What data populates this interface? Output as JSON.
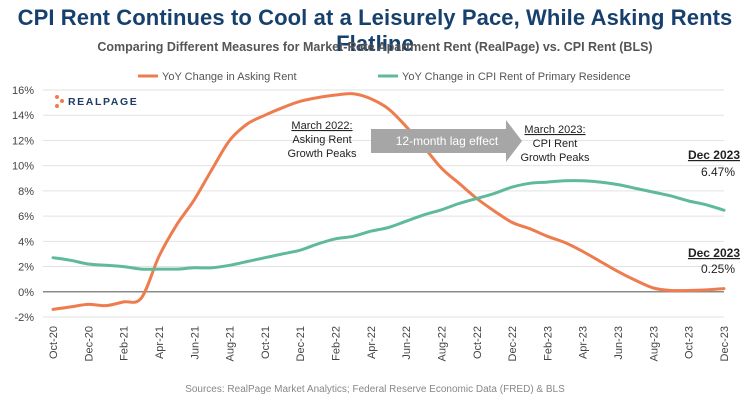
{
  "header": {
    "title": "CPI Rent Continues to Cool at a Leisurely Pace, While Asking Rents Flatline",
    "subtitle": "Comparing Different Measures for Market-Rate Apartment Rent (RealPage) vs. CPI Rent (BLS)"
  },
  "logo": {
    "text": "REALPAGE"
  },
  "source": "Sources: RealPage Market Analytics; Federal Reserve Economic Data (FRED) & BLS",
  "colors": {
    "asking": "#ee7c4e",
    "cpi": "#5fba9b",
    "arrow": "#a6a6a6"
  },
  "annotations": {
    "asking_peak": [
      "March 2022:",
      "Asking Rent",
      "Growth Peaks"
    ],
    "cpi_peak": [
      "March 2023:",
      "CPI Rent",
      "Growth Peaks"
    ],
    "lag_effect": "12-month lag effect",
    "end_cpi": {
      "label": "Dec 2023",
      "value": "6.47%"
    },
    "end_asking": {
      "label": "Dec 2023",
      "value": "0.25%"
    }
  },
  "chart_data": {
    "type": "line",
    "title": "CPI Rent Continues to Cool at a Leisurely Pace, While Asking Rents Flatline",
    "xlabel": "",
    "ylabel": "",
    "ylim": [
      -2,
      16
    ],
    "y_ticks": [
      -2,
      0,
      2,
      4,
      6,
      8,
      10,
      12,
      14,
      16
    ],
    "y_tick_labels": [
      "-2%",
      "0%",
      "2%",
      "4%",
      "6%",
      "8%",
      "10%",
      "12%",
      "14%",
      "16%"
    ],
    "x": [
      "Oct-20",
      "Nov-20",
      "Dec-20",
      "Jan-21",
      "Feb-21",
      "Mar-21",
      "Apr-21",
      "May-21",
      "Jun-21",
      "Jul-21",
      "Aug-21",
      "Sep-21",
      "Oct-21",
      "Nov-21",
      "Dec-21",
      "Jan-22",
      "Feb-22",
      "Mar-22",
      "Apr-22",
      "May-22",
      "Jun-22",
      "Jul-22",
      "Aug-22",
      "Sep-22",
      "Oct-22",
      "Nov-22",
      "Dec-22",
      "Jan-23",
      "Feb-23",
      "Mar-23",
      "Apr-23",
      "May-23",
      "Jun-23",
      "Jul-23",
      "Aug-23",
      "Sep-23",
      "Oct-23",
      "Nov-23",
      "Dec-23"
    ],
    "x_tick_labels": [
      "Oct-20",
      "Dec-20",
      "Feb-21",
      "Apr-21",
      "Jun-21",
      "Aug-21",
      "Oct-21",
      "Dec-21",
      "Feb-22",
      "Apr-22",
      "Jun-22",
      "Aug-22",
      "Oct-22",
      "Dec-22",
      "Feb-23",
      "Apr-23",
      "Jun-23",
      "Aug-23",
      "Oct-23",
      "Dec-23"
    ],
    "legend_position": "top",
    "series": [
      {
        "name": "YoY Change in Asking Rent",
        "color": "#ee7c4e",
        "values": [
          -1.4,
          -1.2,
          -1.0,
          -1.1,
          -0.8,
          -0.5,
          2.8,
          5.3,
          7.3,
          9.7,
          12.0,
          13.3,
          14.0,
          14.6,
          15.1,
          15.4,
          15.6,
          15.7,
          15.3,
          14.5,
          13.1,
          11.5,
          9.8,
          8.6,
          7.4,
          6.4,
          5.5,
          5.0,
          4.4,
          3.9,
          3.2,
          2.4,
          1.6,
          0.9,
          0.3,
          0.1,
          0.1,
          0.15,
          0.25
        ]
      },
      {
        "name": "YoY Change in CPI Rent of Primary Residence",
        "color": "#5fba9b",
        "values": [
          2.7,
          2.5,
          2.2,
          2.1,
          2.0,
          1.8,
          1.8,
          1.8,
          1.9,
          1.9,
          2.1,
          2.4,
          2.7,
          3.0,
          3.3,
          3.8,
          4.2,
          4.4,
          4.8,
          5.1,
          5.6,
          6.1,
          6.5,
          7.0,
          7.4,
          7.8,
          8.3,
          8.6,
          8.7,
          8.8,
          8.8,
          8.7,
          8.5,
          8.2,
          7.9,
          7.6,
          7.2,
          6.9,
          6.47
        ]
      }
    ]
  }
}
